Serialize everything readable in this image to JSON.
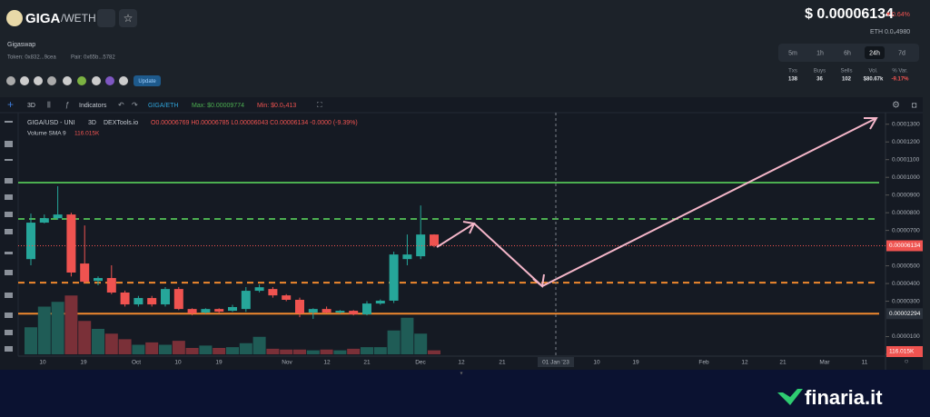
{
  "header": {
    "name": "GIGA",
    "pair": "/WETH",
    "price": "$ 0.00006134",
    "change": "0.64%",
    "eth": "ETH 0.0₄4980",
    "exchange": "Gigaswap",
    "token": "Token: 0x832...9cea",
    "pair_address": "Pair: 0x65b...5782",
    "update": "Update"
  },
  "timeframes": [
    "5m",
    "1h",
    "6h",
    "24h",
    "7d"
  ],
  "active_timeframe": "24h",
  "stats": [
    {
      "label": "Txs",
      "value": "138"
    },
    {
      "label": "Buys",
      "value": "36"
    },
    {
      "label": "Sells",
      "value": "102"
    },
    {
      "label": "Vol.",
      "value": "$80.67k"
    },
    {
      "label": "% Var.",
      "value": "-9.17%"
    }
  ],
  "toolbar": {
    "interval": "3D",
    "indicators": "Indicators",
    "pair": "GIGA/ETH",
    "max": "Max: $0.00009774",
    "min": "Min: $0.0₅413"
  },
  "chart_data": {
    "type": "candlestick",
    "title": "GIGA/USD - UNI",
    "interval": "3D",
    "source": "DEXTools.io",
    "ohlc_label": "O0.00006769 H0.00006785 L0.00006043 C0.00006134 -0.0000 (-9.39%)",
    "volume_label": "Volume SMA 9",
    "volume_sma": "116.015K",
    "up_color": "#26a69a",
    "down_color": "#ef5350",
    "open": [
      5.38e-05,
      7.44e-05,
      7.69e-05,
      7.9e-05,
      5.13e-05,
      4.15e-05,
      4.31e-05,
      3.49e-05,
      2.82e-05,
      3.18e-05,
      2.82e-05,
      3.69e-05,
      2.56e-05,
      2.36e-05,
      2.56e-05,
      2.46e-05,
      2.56e-05,
      3.59e-05,
      3.69e-05,
      3.33e-05,
      3.08e-05,
      2.36e-05,
      2.56e-05,
      2.36e-05,
      2.46e-05,
      2.26e-05,
      2.87e-05,
      3.03e-05,
      5.38e-05,
      5.54e-05,
      6.769e-05
    ],
    "high": [
      7.95e-05,
      7.9e-05,
      9.5e-05,
      8e-05,
      7.28e-05,
      4.4e-05,
      5.03e-05,
      3.6e-05,
      3.3e-05,
      3.3e-05,
      3.8e-05,
      3.8e-05,
      2.6e-05,
      2.6e-05,
      2.6e-05,
      2.8e-05,
      3.8e-05,
      3.95e-05,
      3.8e-05,
      3.4e-05,
      3.2e-05,
      2.6e-05,
      2.7e-05,
      2.5e-05,
      2.5e-05,
      3e-05,
      3.1e-05,
      5.8e-05,
      6.77e-05,
      8.41e-05,
      6.785e-05
    ],
    "low": [
      5.03e-05,
      7.4e-05,
      7.6e-05,
      4.4e-05,
      4e-05,
      3.9e-05,
      3.4e-05,
      2.7e-05,
      2.7e-05,
      2.7e-05,
      2.7e-05,
      2.5e-05,
      2.2e-05,
      2.3e-05,
      2.3e-05,
      2.4e-05,
      2.4e-05,
      3.5e-05,
      3.2e-05,
      3e-05,
      2.1e-05,
      2e-05,
      2.3e-05,
      2.3e-05,
      2.2e-05,
      2.2e-05,
      2.8e-05,
      2.9e-05,
      5.03e-05,
      5.38e-05,
      6.043e-05
    ],
    "close": [
      7.44e-05,
      7.69e-05,
      7.9e-05,
      4.62e-05,
      4.1e-05,
      4.31e-05,
      3.49e-05,
      2.82e-05,
      3.18e-05,
      2.82e-05,
      3.69e-05,
      2.56e-05,
      2.31e-05,
      2.56e-05,
      2.41e-05,
      2.67e-05,
      3.59e-05,
      3.79e-05,
      3.33e-05,
      3.08e-05,
      2.31e-05,
      2.56e-05,
      2.36e-05,
      2.46e-05,
      2.26e-05,
      2.87e-05,
      3.03e-05,
      5.64e-05,
      5.64e-05,
      6.769e-05,
      6.134e-05
    ],
    "volume": [
      170,
      300,
      330,
      370,
      210,
      160,
      130,
      95,
      60,
      75,
      60,
      85,
      40,
      55,
      40,
      45,
      70,
      110,
      35,
      30,
      30,
      25,
      30,
      25,
      35,
      45,
      45,
      150,
      230,
      130,
      25
    ],
    "vlim": [
      0,
      400
    ],
    "ylim": [
      0,
      0.000135
    ],
    "yticks": [
      {
        "value": 0.00013,
        "label": "0.0001300"
      },
      {
        "value": 0.00012,
        "label": "0.0001200"
      },
      {
        "value": 0.00011,
        "label": "0.0001100"
      },
      {
        "value": 0.0001,
        "label": "0.0001000"
      },
      {
        "value": 9e-05,
        "label": "0.0000900"
      },
      {
        "value": 8e-05,
        "label": "0.0000800"
      },
      {
        "value": 7e-05,
        "label": "0.0000700"
      },
      {
        "value": 5e-05,
        "label": "0.0000500"
      },
      {
        "value": 4e-05,
        "label": "0.0000400"
      },
      {
        "value": 3e-05,
        "label": "0.0000300"
      },
      {
        "value": 1e-05,
        "label": "0.0000100"
      },
      {
        "value": 0,
        "label": "0.0000000"
      }
    ],
    "price_lines": [
      {
        "value": 9.7e-05,
        "color": "#4caf50",
        "style": "solid"
      },
      {
        "value": 7.65e-05,
        "color": "#4caf50",
        "style": "dashed"
      },
      {
        "value": 4.05e-05,
        "color": "#f0892e",
        "style": "dashed"
      },
      {
        "value": 2.294e-05,
        "color": "#f0892e",
        "style": "solid"
      }
    ],
    "xlabels": [
      "10",
      "19",
      "Oct",
      "10",
      "19",
      "Nov",
      "12",
      "21",
      "Dec",
      "12",
      "21",
      "01 Jan '23",
      "10",
      "19",
      "Feb",
      "12",
      "21",
      "Mar",
      "11"
    ]
  },
  "brand": "finaria.it"
}
